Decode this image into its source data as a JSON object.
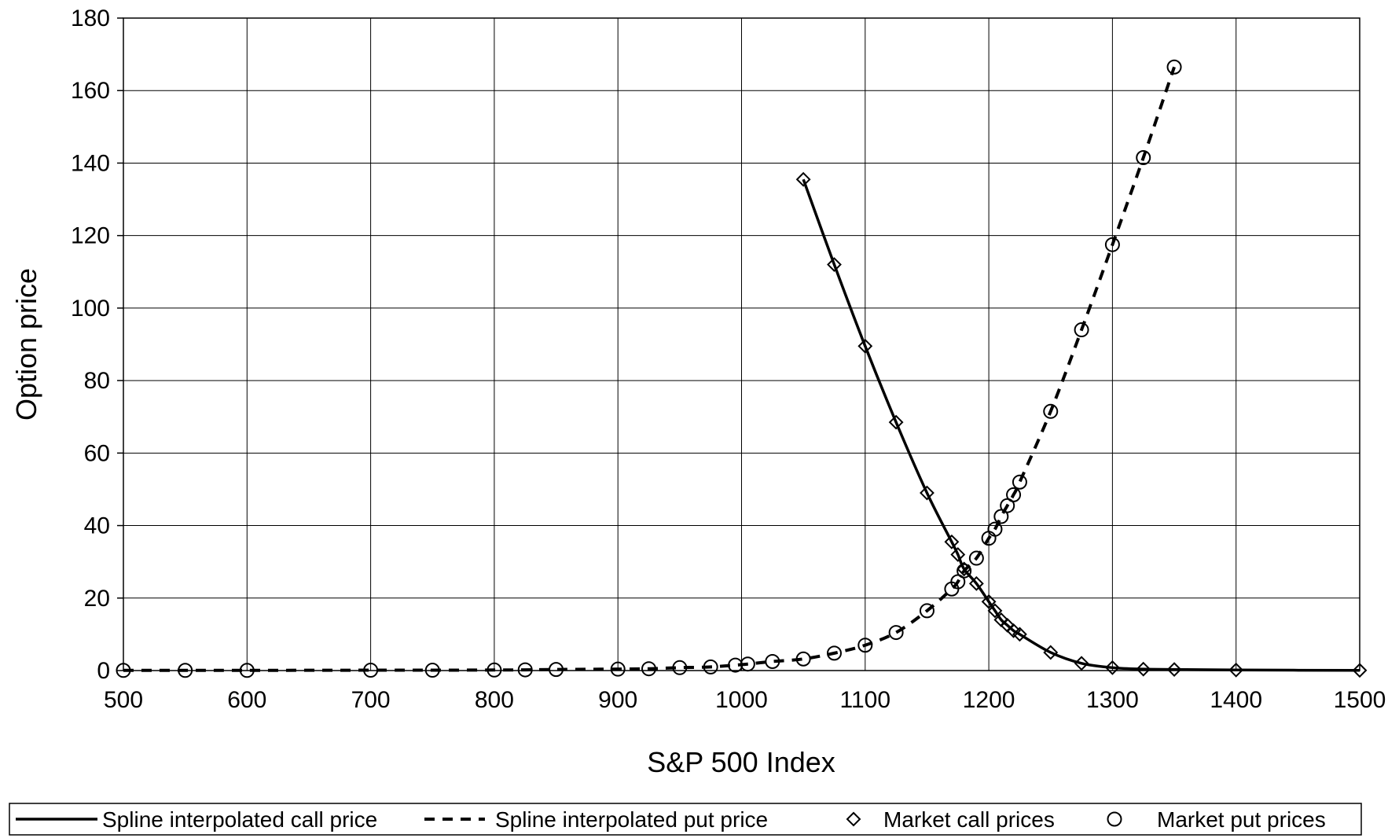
{
  "chart_data": {
    "type": "line",
    "title": "",
    "xlabel": "S&P 500 Index",
    "ylabel": "Option price",
    "xlim": [
      500,
      1500
    ],
    "ylim": [
      0,
      180
    ],
    "x_ticks": [
      500,
      600,
      700,
      800,
      900,
      1000,
      1100,
      1200,
      1300,
      1400,
      1500
    ],
    "y_ticks": [
      0,
      20,
      40,
      60,
      80,
      100,
      120,
      140,
      160,
      180
    ],
    "grid": true,
    "legend": "bottom",
    "series": [
      {
        "name": "Spline interpolated call price",
        "kind": "line",
        "style": "solid",
        "x": [
          1050,
          1075,
          1100,
          1125,
          1150,
          1170,
          1175,
          1180,
          1190,
          1200,
          1205,
          1210,
          1215,
          1220,
          1225,
          1250,
          1275,
          1300,
          1325,
          1350,
          1400,
          1500
        ],
        "y": [
          135.5,
          112,
          89.5,
          68.5,
          49,
          35.5,
          32,
          28,
          24,
          19,
          16.5,
          14,
          12.5,
          11,
          10,
          5,
          2,
          0.8,
          0.4,
          0.3,
          0.15,
          0.05
        ]
      },
      {
        "name": "Spline interpolated put price",
        "kind": "line",
        "style": "dashed",
        "x": [
          500,
          550,
          600,
          700,
          750,
          800,
          825,
          850,
          900,
          925,
          950,
          975,
          995,
          1005,
          1025,
          1050,
          1075,
          1100,
          1125,
          1150,
          1170,
          1175,
          1180,
          1190,
          1200,
          1205,
          1210,
          1215,
          1220,
          1225,
          1250,
          1275,
          1300,
          1325,
          1350
        ],
        "y": [
          0.05,
          0.05,
          0.05,
          0.1,
          0.1,
          0.15,
          0.2,
          0.3,
          0.4,
          0.5,
          0.8,
          1.0,
          1.5,
          1.8,
          2.5,
          3.2,
          4.8,
          7,
          10.5,
          16.5,
          22.5,
          24.5,
          27.5,
          31,
          36.5,
          39,
          42.5,
          45.5,
          48.5,
          52,
          71.5,
          94,
          117.5,
          141.5,
          166.5
        ]
      },
      {
        "name": "Market call prices",
        "kind": "scatter",
        "marker": "diamond",
        "x": [
          1050,
          1075,
          1100,
          1125,
          1150,
          1170,
          1175,
          1180,
          1190,
          1200,
          1205,
          1210,
          1215,
          1220,
          1225,
          1250,
          1275,
          1300,
          1325,
          1350,
          1400,
          1500
        ],
        "y": [
          135.5,
          112,
          89.5,
          68.5,
          49,
          35.5,
          32,
          28,
          24,
          19,
          16.5,
          14,
          12.5,
          11,
          10,
          5,
          2,
          0.8,
          0.4,
          0.3,
          0.15,
          0.05
        ]
      },
      {
        "name": "Market put prices",
        "kind": "scatter",
        "marker": "circle",
        "x": [
          500,
          550,
          600,
          700,
          750,
          800,
          825,
          850,
          900,
          925,
          950,
          975,
          995,
          1005,
          1025,
          1050,
          1075,
          1100,
          1125,
          1150,
          1170,
          1175,
          1180,
          1190,
          1200,
          1205,
          1210,
          1215,
          1220,
          1225,
          1250,
          1275,
          1300,
          1325,
          1350
        ],
        "y": [
          0.05,
          0.05,
          0.05,
          0.1,
          0.1,
          0.15,
          0.2,
          0.3,
          0.4,
          0.5,
          0.8,
          1.0,
          1.5,
          1.8,
          2.5,
          3.2,
          4.8,
          7,
          10.5,
          16.5,
          22.5,
          24.5,
          27.5,
          31,
          36.5,
          39,
          42.5,
          45.5,
          48.5,
          52,
          71.5,
          94,
          117.5,
          141.5,
          166.5
        ]
      }
    ]
  }
}
